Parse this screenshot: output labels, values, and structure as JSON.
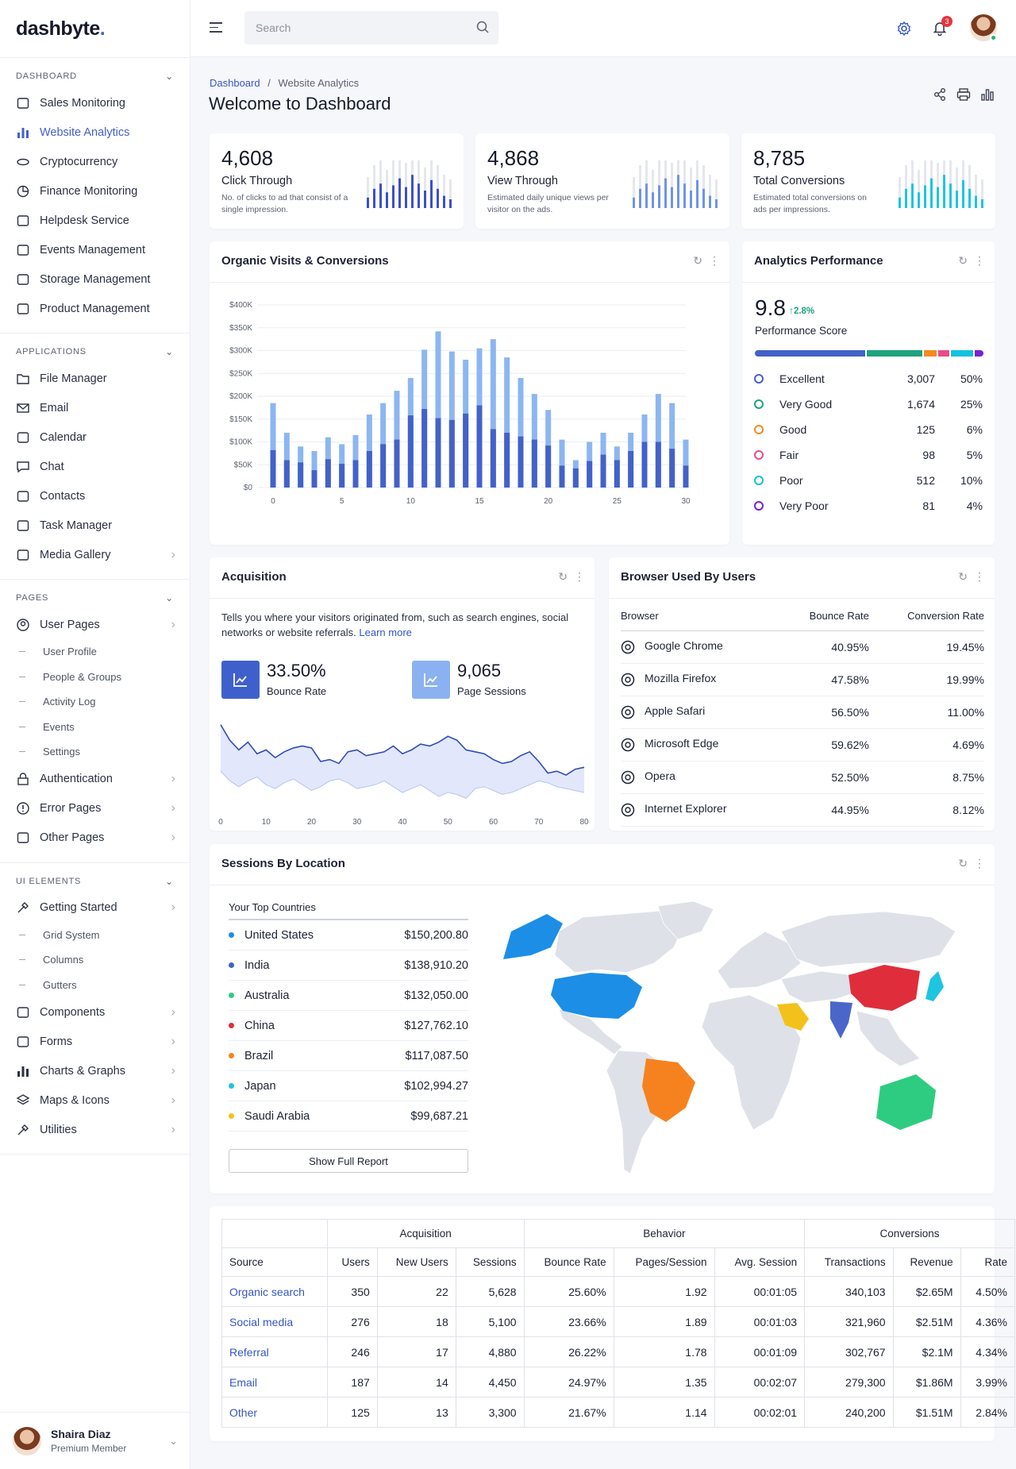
{
  "brand": {
    "name": "dashbyte",
    "dot": "."
  },
  "search": {
    "placeholder": "Search"
  },
  "notifications": {
    "count": "3"
  },
  "sidebar": {
    "dashboard": {
      "head": "DASHBOARD",
      "items": [
        {
          "label": "Sales Monitoring",
          "icon": "cart-icon"
        },
        {
          "label": "Website Analytics",
          "icon": "bar-chart-icon"
        },
        {
          "label": "Cryptocurrency",
          "icon": "coins-icon"
        },
        {
          "label": "Finance Monitoring",
          "icon": "pie-chart-icon"
        },
        {
          "label": "Helpdesk Service",
          "icon": "heart-handshake-icon"
        },
        {
          "label": "Events Management",
          "icon": "calendar-icon"
        },
        {
          "label": "Storage Management",
          "icon": "storage-icon"
        },
        {
          "label": "Product Management",
          "icon": "clipboard-icon"
        }
      ]
    },
    "applications": {
      "head": "APPLICATIONS",
      "items": [
        {
          "label": "File Manager",
          "icon": "folder-icon"
        },
        {
          "label": "Email",
          "icon": "mail-icon"
        },
        {
          "label": "Calendar",
          "icon": "calendar-icon"
        },
        {
          "label": "Chat",
          "icon": "chat-icon"
        },
        {
          "label": "Contacts",
          "icon": "contacts-icon"
        },
        {
          "label": "Task Manager",
          "icon": "task-icon"
        },
        {
          "label": "Media Gallery",
          "icon": "gallery-icon"
        }
      ]
    },
    "pages": {
      "head": "PAGES",
      "user_pages": "User Pages",
      "subs": [
        "User Profile",
        "People & Groups",
        "Activity Log",
        "Events",
        "Settings"
      ],
      "items": [
        {
          "label": "Authentication",
          "icon": "lock-icon"
        },
        {
          "label": "Error Pages",
          "icon": "alert-icon"
        },
        {
          "label": "Other Pages",
          "icon": "file-icon"
        }
      ]
    },
    "ui": {
      "head": "UI ELEMENTS",
      "getting_started": "Getting Started",
      "subs": [
        "Grid System",
        "Columns",
        "Gutters"
      ],
      "items": [
        {
          "label": "Components",
          "icon": "components-icon"
        },
        {
          "label": "Forms",
          "icon": "forms-icon"
        },
        {
          "label": "Charts & Graphs",
          "icon": "bar-chart-icon"
        },
        {
          "label": "Maps & Icons",
          "icon": "layers-icon"
        },
        {
          "label": "Utilities",
          "icon": "utilities-icon"
        }
      ]
    }
  },
  "user": {
    "name": "Shaira Diaz",
    "role": "Premium Member"
  },
  "page": {
    "breadcrumb_root": "Dashboard",
    "breadcrumb_sep": "/",
    "breadcrumb_current": "Website Analytics",
    "title": "Welcome to Dashboard"
  },
  "stats": [
    {
      "value": "4,608",
      "label": "Click Through",
      "desc": "No. of clicks to ad that consist of a single impression.",
      "color": "#3b50c8",
      "bars": [
        0.3,
        0.55,
        0.7,
        0.45,
        0.65,
        0.85,
        0.6,
        0.95,
        0.7,
        0.5,
        0.8,
        0.55,
        0.35,
        0.25
      ]
    },
    {
      "value": "4,868",
      "label": "View Through",
      "desc": "Estimated daily unique views per visitor on the ads.",
      "color": "#6f93e8",
      "bars": [
        0.3,
        0.55,
        0.7,
        0.45,
        0.65,
        0.85,
        0.6,
        0.95,
        0.7,
        0.5,
        0.8,
        0.55,
        0.35,
        0.25
      ]
    },
    {
      "value": "8,785",
      "label": "Total Conversions",
      "desc": "Estimated total conversions on ads per impressions.",
      "color": "#1ec4e0",
      "bars": [
        0.3,
        0.55,
        0.7,
        0.45,
        0.65,
        0.85,
        0.6,
        0.95,
        0.7,
        0.5,
        0.8,
        0.55,
        0.35,
        0.25
      ]
    }
  ],
  "organic": {
    "title": "Organic Visits & Conversions"
  },
  "chart_data": [
    {
      "type": "bar",
      "title": "Organic Visits & Conversions",
      "ylim": [
        0,
        400000
      ],
      "y_ticks": [
        "$0",
        "$50K",
        "$100K",
        "$150K",
        "$200K",
        "$250K",
        "$300K",
        "$350K",
        "$400K"
      ],
      "x_ticks": [
        "0",
        "5",
        "10",
        "15",
        "20",
        "25",
        "30"
      ],
      "x": [
        0,
        1,
        2,
        3,
        4,
        5,
        6,
        7,
        8,
        9,
        10,
        11,
        12,
        13,
        14,
        15,
        16,
        17,
        18,
        19,
        20,
        21,
        22,
        23,
        24,
        25,
        26,
        27,
        28,
        29,
        30
      ],
      "series": [
        {
          "values": [
            185000,
            120000,
            90000,
            80000,
            110000,
            95000,
            115000,
            160000,
            185000,
            212000,
            240000,
            302000,
            342000,
            298000,
            280000,
            305000,
            325000,
            285000,
            240000,
            205000,
            170000,
            105000,
            60000,
            100000,
            120000,
            90000,
            120000,
            160000,
            205000,
            185000,
            105000
          ],
          "color": "#8cb6f2"
        },
        {
          "values": [
            82000,
            60000,
            55000,
            38000,
            62000,
            52000,
            60000,
            80000,
            95000,
            105000,
            158000,
            172000,
            152000,
            148000,
            162000,
            180000,
            128000,
            120000,
            112000,
            105000,
            92000,
            48000,
            42000,
            58000,
            72000,
            60000,
            80000,
            100000,
            100000,
            85000,
            48000
          ],
          "color": "#4361c8"
        }
      ]
    },
    {
      "type": "area",
      "title": "",
      "x_ticks": [
        "0",
        "10",
        "20",
        "30",
        "40",
        "50",
        "60",
        "70",
        "80"
      ],
      "x": [
        0,
        2,
        4,
        6,
        8,
        10,
        12,
        14,
        16,
        18,
        20,
        22,
        24,
        26,
        28,
        30,
        32,
        34,
        36,
        38,
        40,
        42,
        44,
        46,
        48,
        50,
        52,
        54,
        56,
        58,
        60,
        62,
        64,
        66,
        68,
        70,
        72,
        74,
        76,
        78,
        80
      ],
      "series": [
        {
          "name": "upper",
          "values": [
            88,
            72,
            62,
            70,
            58,
            62,
            54,
            60,
            64,
            66,
            64,
            50,
            52,
            48,
            60,
            62,
            56,
            58,
            60,
            66,
            58,
            62,
            68,
            66,
            70,
            76,
            72,
            62,
            60,
            58,
            52,
            48,
            50,
            56,
            60,
            50,
            38,
            40,
            36,
            42,
            44
          ]
        },
        {
          "name": "lower",
          "values": [
            40,
            30,
            24,
            30,
            34,
            26,
            22,
            28,
            32,
            26,
            20,
            24,
            30,
            32,
            28,
            22,
            24,
            26,
            30,
            24,
            18,
            22,
            26,
            20,
            14,
            18,
            16,
            12,
            22,
            24,
            20,
            16,
            18,
            22,
            26,
            30,
            28,
            24,
            22,
            20,
            18
          ]
        }
      ],
      "ylim": [
        0,
        100
      ]
    }
  ],
  "performance": {
    "title": "Analytics Performance",
    "score": "9.8",
    "change": "2.8%",
    "score_label": "Performance Score",
    "rows": [
      {
        "name": "Excellent",
        "count": "3,007",
        "pct": "50%",
        "color": "#4361c8",
        "frac": 50
      },
      {
        "name": "Very Good",
        "count": "1,674",
        "pct": "25%",
        "color": "#1ea37c",
        "frac": 25
      },
      {
        "name": "Good",
        "count": "125",
        "pct": "6%",
        "color": "#f58a24",
        "frac": 6
      },
      {
        "name": "Fair",
        "count": "98",
        "pct": "5%",
        "color": "#ea4c89",
        "frac": 5
      },
      {
        "name": "Poor",
        "count": "512",
        "pct": "10%",
        "color": "#16c1e0",
        "frac": 10
      },
      {
        "name": "Very Poor",
        "count": "81",
        "pct": "4%",
        "color": "#7a1fd6",
        "frac": 4
      }
    ]
  },
  "acquisition": {
    "title": "Acquisition",
    "desc": "Tells you where your visitors originated from, such as search engines, social networks or website referrals.",
    "learn": "Learn more",
    "bounce_value": "33.50%",
    "bounce_label": "Bounce Rate",
    "sessions_value": "9,065",
    "sessions_label": "Page Sessions"
  },
  "browsers": {
    "title": "Browser Used By Users",
    "headers": [
      "Browser",
      "Bounce Rate",
      "Conversion Rate"
    ],
    "rows": [
      {
        "name": "Google Chrome",
        "bounce": "40.95%",
        "conv": "19.45%",
        "icon": "chrome-icon"
      },
      {
        "name": "Mozilla Firefox",
        "bounce": "47.58%",
        "conv": "19.99%",
        "icon": "firefox-icon"
      },
      {
        "name": "Apple Safari",
        "bounce": "56.50%",
        "conv": "11.00%",
        "icon": "safari-icon"
      },
      {
        "name": "Microsoft Edge",
        "bounce": "59.62%",
        "conv": "4.69%",
        "icon": "edge-icon"
      },
      {
        "name": "Opera",
        "bounce": "52.50%",
        "conv": "8.75%",
        "icon": "opera-icon"
      },
      {
        "name": "Internet Explorer",
        "bounce": "44.95%",
        "conv": "8.12%",
        "icon": "ie-icon"
      }
    ]
  },
  "sessions": {
    "title": "Sessions By Location",
    "top_countries": "Your Top Countries",
    "button": "Show Full Report",
    "rows": [
      {
        "country": "United States",
        "amount": "$150,200.80",
        "color": "#1c8ee6"
      },
      {
        "country": "India",
        "amount": "$138,910.20",
        "color": "#4361c8"
      },
      {
        "country": "Australia",
        "amount": "$132,050.00",
        "color": "#2ecc80"
      },
      {
        "country": "China",
        "amount": "$127,762.10",
        "color": "#e02d3c"
      },
      {
        "country": "Brazil",
        "amount": "$117,087.50",
        "color": "#f5821f"
      },
      {
        "country": "Japan",
        "amount": "$102,994.27",
        "color": "#1ec4e0"
      },
      {
        "country": "Saudi Arabia",
        "amount": "$99,687.21",
        "color": "#f2c21b"
      }
    ]
  },
  "traffic": {
    "groups": [
      "Acquisition",
      "Behavior",
      "Conversions"
    ],
    "headers": [
      "Source",
      "Users",
      "New Users",
      "Sessions",
      "Bounce Rate",
      "Pages/Session",
      "Avg. Session",
      "Transactions",
      "Revenue",
      "Rate"
    ],
    "rows": [
      [
        "Organic search",
        "350",
        "22",
        "5,628",
        "25.60%",
        "1.92",
        "00:01:05",
        "340,103",
        "$2.65M",
        "4.50%"
      ],
      [
        "Social media",
        "276",
        "18",
        "5,100",
        "23.66%",
        "1.89",
        "00:01:03",
        "321,960",
        "$2.51M",
        "4.36%"
      ],
      [
        "Referral",
        "246",
        "17",
        "4,880",
        "26.22%",
        "1.78",
        "00:01:09",
        "302,767",
        "$2.1M",
        "4.34%"
      ],
      [
        "Email",
        "187",
        "14",
        "4,450",
        "24.97%",
        "1.35",
        "00:02:07",
        "279,300",
        "$1.86M",
        "3.99%"
      ],
      [
        "Other",
        "125",
        "13",
        "3,300",
        "21.67%",
        "1.14",
        "00:02:01",
        "240,200",
        "$1.51M",
        "2.84%"
      ]
    ]
  }
}
